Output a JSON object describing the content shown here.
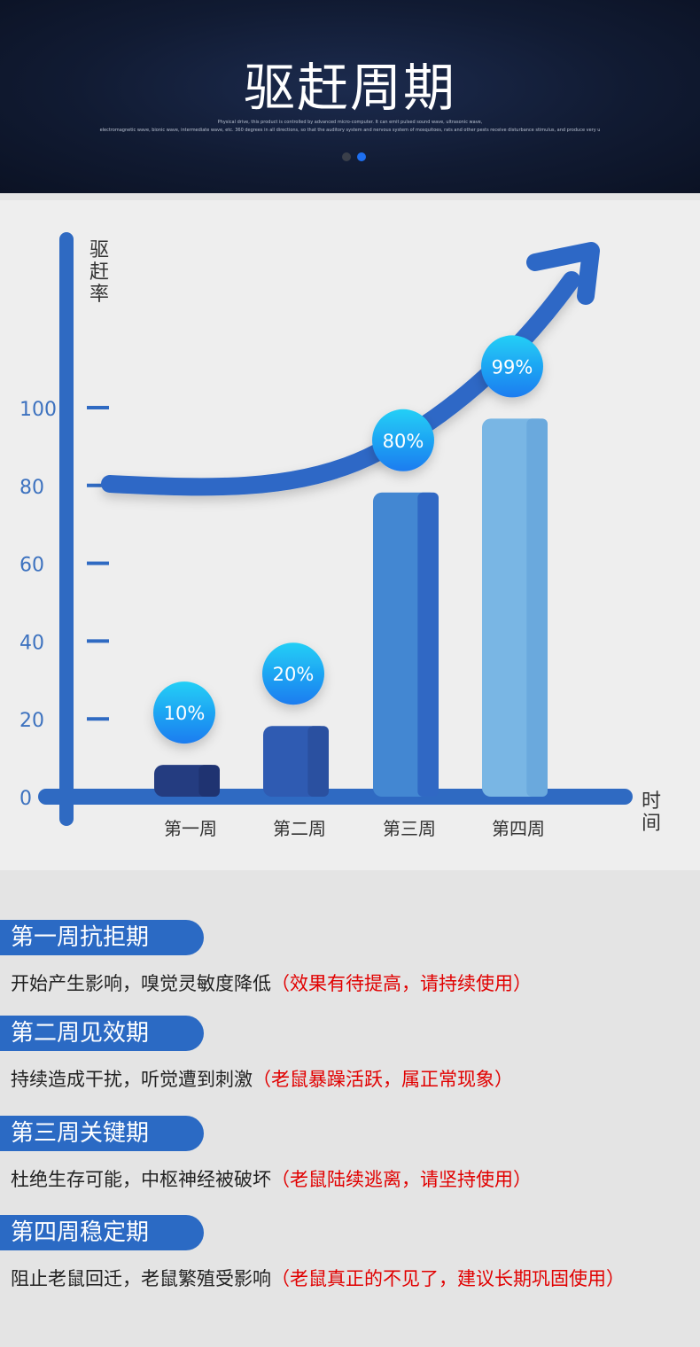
{
  "header": {
    "title": "驱赶周期",
    "subtitle_line1": "Physical drive, this product is controlled by advanced micro-computer. It can emit pulsed sound wave, ultrasonic wave,",
    "subtitle_line2": "electromagnetic wave, bionic wave, intermediate wave, etc. 360 degrees in all directions, so that the auditory system and nervous system of mosquitoes, rats and other pests receive disturbance stimulus, and produce very u",
    "dots": [
      "#3a3f4a",
      "#1e6ff0"
    ]
  },
  "chart_data": {
    "type": "bar",
    "ylabel": "驱赶率",
    "xlabel": "时间",
    "categories": [
      "第一周",
      "第二周",
      "第三周",
      "第四周"
    ],
    "values": [
      10,
      20,
      80,
      99
    ],
    "data_labels": [
      "10%",
      "20%",
      "80%",
      "99%"
    ],
    "yticks": [
      "0",
      "20",
      "40",
      "60",
      "80",
      "100"
    ],
    "ylim": [
      0,
      100
    ],
    "bar_colors": [
      "#243c80",
      "#2f5bb2",
      "#4387d2",
      "#79b6e4"
    ],
    "bar_side_colors": [
      "#1f3371",
      "#2a50a0",
      "#3068c4",
      "#6aa9dd"
    ],
    "axis_color": "#2f6ac2",
    "bubble_colors": [
      "#23cff6",
      "#1a7cf0"
    ],
    "trend_arrow": true
  },
  "phases": [
    {
      "title": "第一周抗拒期",
      "text": "开始产生影响，嗅觉灵敏度降低",
      "note": "（效果有待提高，请持续使用）"
    },
    {
      "title": "第二周见效期",
      "text": "持续造成干扰，听觉遭到刺激",
      "note": "（老鼠暴躁活跃，属正常现象）"
    },
    {
      "title": "第三周关键期",
      "text": "杜绝生存可能，中枢神经被破坏",
      "note": "（老鼠陆续逃离，请坚持使用）"
    },
    {
      "title": "第四周稳定期",
      "text": "阻止老鼠回迁，老鼠繁殖受影响",
      "note": "（老鼠真正的不见了，建议长期巩固使用）"
    }
  ]
}
